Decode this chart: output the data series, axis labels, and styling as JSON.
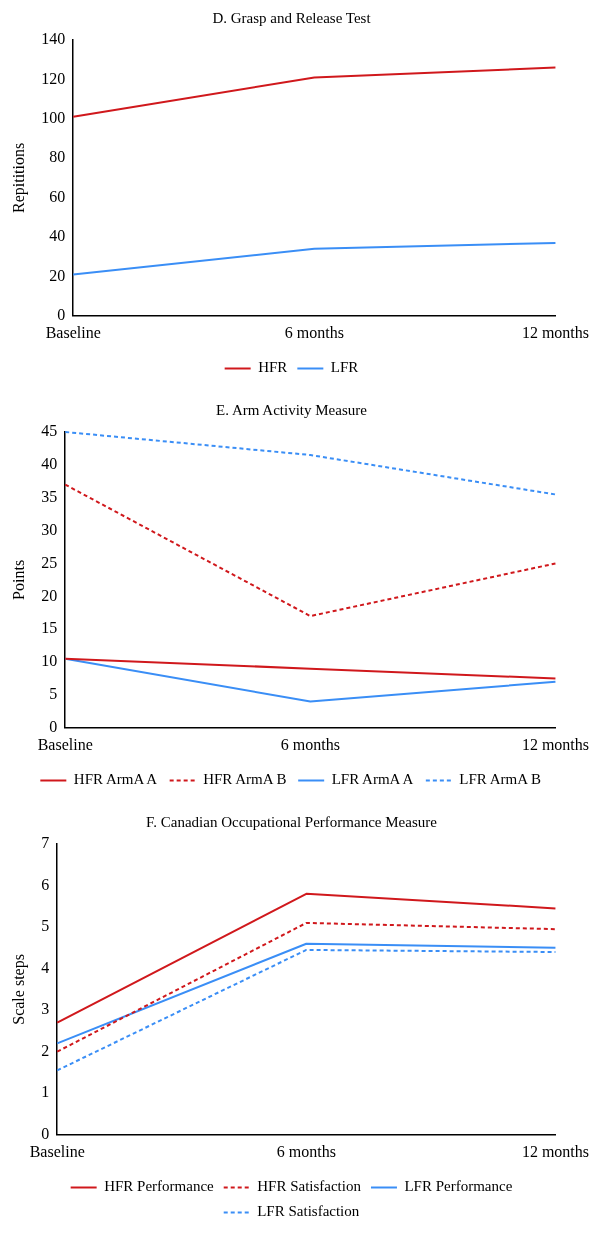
{
  "chart_data": [
    {
      "type": "line",
      "title": "D. Grasp and Release Test",
      "ylabel": "Repititions",
      "categories": [
        "Baseline",
        "6 months",
        "12 months"
      ],
      "ylim": [
        0,
        140
      ],
      "yticks": [
        0,
        20,
        40,
        60,
        80,
        100,
        120,
        140
      ],
      "grid": false,
      "legend": "bottom",
      "marker": "none",
      "series": [
        {
          "name": "HFR",
          "color": "#d0181c",
          "values": [
            101,
            121,
            126
          ]
        },
        {
          "name": "LFR",
          "color": "#3a8ef6",
          "values": [
            21,
            34,
            37
          ]
        }
      ]
    },
    {
      "type": "line",
      "title": "E. Arm Activity Measure",
      "ylabel": "Points",
      "categories": [
        "Baseline",
        "6 months",
        "12 months"
      ],
      "ylim": [
        0,
        45
      ],
      "yticks": [
        0,
        5,
        10,
        15,
        20,
        25,
        30,
        35,
        40,
        45
      ],
      "grid": false,
      "legend": "bottom",
      "marker": "none",
      "series": [
        {
          "name": "HFR ArmA A",
          "color": "#d0181c",
          "values": [
            10.5,
            9,
            7.5
          ]
        },
        {
          "name": "HFR ArmA B",
          "color": "#d0181c",
          "line_style": "dashed",
          "values": [
            37,
            17,
            25
          ]
        },
        {
          "name": "LFR ArmA A",
          "color": "#3a8ef6",
          "values": [
            10.5,
            4,
            7
          ]
        },
        {
          "name": "LFR ArmA B",
          "color": "#3a8ef6",
          "line_style": "dashed",
          "values": [
            45,
            41.5,
            35.5
          ]
        }
      ]
    },
    {
      "type": "line",
      "title": "F. Canadian Occupational Performance Measure",
      "ylabel": "Scale steps",
      "categories": [
        "Baseline",
        "6 months",
        "12 months"
      ],
      "ylim": [
        0,
        7
      ],
      "yticks": [
        0,
        1,
        2,
        3,
        4,
        5,
        6,
        7
      ],
      "grid": false,
      "legend": "bottom",
      "marker": "none",
      "series": [
        {
          "name": "HFR Performance",
          "color": "#d0181c",
          "values": [
            2.7,
            5.8,
            5.45
          ]
        },
        {
          "name": "HFR Satisfaction",
          "color": "#d0181c",
          "line_style": "dashed",
          "values": [
            2.0,
            5.1,
            4.95
          ]
        },
        {
          "name": "LFR Performance",
          "color": "#3a8ef6",
          "values": [
            2.2,
            4.6,
            4.5
          ]
        },
        {
          "name": "LFR Satisfaction",
          "color": "#3a8ef6",
          "line_style": "dashed",
          "values": [
            1.55,
            4.45,
            4.4
          ]
        }
      ]
    }
  ]
}
